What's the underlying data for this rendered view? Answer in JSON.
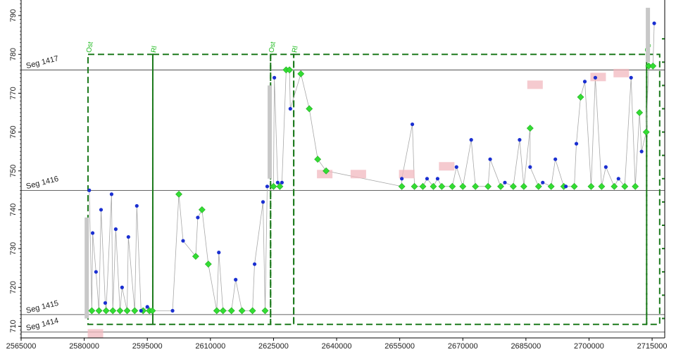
{
  "chart_data": {
    "type": "scatter",
    "title": "",
    "xlabel": "",
    "ylabel": "",
    "xlim": [
      2565000,
      2718000
    ],
    "ylim": [
      707,
      794
    ],
    "xticks": [
      {
        "value": 2565000,
        "label": "2565000"
      },
      {
        "value": 2580000,
        "label": "2580000"
      },
      {
        "value": 2595000,
        "label": "2595000"
      },
      {
        "value": 2610000,
        "label": "2610000"
      },
      {
        "value": 2625000,
        "label": "2625000"
      },
      {
        "value": 2640000,
        "label": "2640000"
      },
      {
        "value": 2655000,
        "label": "2655000"
      },
      {
        "value": 2670000,
        "label": "2670000"
      },
      {
        "value": 2685000,
        "label": "2685000"
      },
      {
        "value": 2700000,
        "label": "2700000"
      },
      {
        "value": 2715000,
        "label": "2715000"
      }
    ],
    "yticks": [
      {
        "value": 710,
        "label": "710"
      },
      {
        "value": 720,
        "label": "720"
      },
      {
        "value": 730,
        "label": "730"
      },
      {
        "value": 740,
        "label": "740"
      },
      {
        "value": 750,
        "label": "750"
      },
      {
        "value": 760,
        "label": "760"
      },
      {
        "value": 770,
        "label": "770"
      },
      {
        "value": 780,
        "label": "780"
      },
      {
        "value": 790,
        "label": "790"
      }
    ],
    "segments": [
      {
        "label": "Seg 1414",
        "y": 708.5
      },
      {
        "label": "Seg 1415",
        "y": 713
      },
      {
        "label": "Seg 1416",
        "y": 745
      },
      {
        "label": "Seg 1417",
        "y": 776
      }
    ],
    "boxes": [
      {
        "x": [
          2580900,
          2596300
        ],
        "y": [
          710.5,
          780
        ]
      },
      {
        "x": [
          2596300,
          2624300
        ],
        "y": [
          710.5,
          780
        ]
      },
      {
        "x": [
          2624300,
          2629800
        ],
        "y": [
          710.5,
          780
        ]
      },
      {
        "x": [
          2629800,
          2713700
        ],
        "y": [
          710.5,
          780
        ]
      },
      {
        "x": [
          2713700,
          2716800
        ],
        "y": [
          710.5,
          780
        ]
      }
    ],
    "box_labels": [
      {
        "text": "Ost",
        "x": 2580900
      },
      {
        "text": "Rl",
        "x": 2596300
      },
      {
        "text": "Ost",
        "x": 2624300
      },
      {
        "text": "Rl",
        "x": 2629800
      },
      {
        "text": "Os",
        "x": 2713700
      }
    ],
    "series": [
      {
        "marker": "diamond",
        "points": [
          [
            2581800,
            714
          ],
          [
            2583500,
            714
          ],
          [
            2585200,
            714
          ],
          [
            2586800,
            714
          ],
          [
            2588500,
            714
          ],
          [
            2590200,
            714
          ],
          [
            2592000,
            714
          ],
          [
            2594000,
            714
          ],
          [
            2595500,
            714
          ],
          [
            2596200,
            714
          ],
          [
            2602500,
            744
          ],
          [
            2606500,
            728
          ],
          [
            2608000,
            740
          ],
          [
            2609500,
            726
          ],
          [
            2611500,
            714
          ],
          [
            2613000,
            714
          ],
          [
            2615000,
            714
          ],
          [
            2617500,
            714
          ],
          [
            2620000,
            714
          ],
          [
            2623000,
            714
          ],
          [
            2625000,
            746
          ],
          [
            2626500,
            746
          ],
          [
            2628000,
            776
          ],
          [
            2628800,
            776
          ],
          [
            2631500,
            775
          ],
          [
            2633500,
            766
          ],
          [
            2635500,
            753
          ],
          [
            2637500,
            750
          ],
          [
            2655500,
            746
          ],
          [
            2658500,
            746
          ],
          [
            2660500,
            746
          ],
          [
            2663000,
            746
          ],
          [
            2665000,
            746
          ],
          [
            2667500,
            746
          ],
          [
            2670000,
            746
          ],
          [
            2673000,
            746
          ],
          [
            2676000,
            746
          ],
          [
            2679000,
            746
          ],
          [
            2682000,
            746
          ],
          [
            2684500,
            746
          ],
          [
            2686000,
            761
          ],
          [
            2688000,
            746
          ],
          [
            2691000,
            746
          ],
          [
            2694000,
            746
          ],
          [
            2696500,
            746
          ],
          [
            2698000,
            769
          ],
          [
            2700500,
            746
          ],
          [
            2703000,
            746
          ],
          [
            2706000,
            746
          ],
          [
            2708500,
            746
          ],
          [
            2711000,
            746
          ],
          [
            2712000,
            765
          ],
          [
            2713600,
            760
          ],
          [
            2714200,
            777
          ],
          [
            2715200,
            777
          ]
        ]
      },
      {
        "marker": "circle",
        "points": [
          [
            2581200,
            745
          ],
          [
            2582000,
            734
          ],
          [
            2582800,
            724
          ],
          [
            2584000,
            740
          ],
          [
            2585000,
            716
          ],
          [
            2586500,
            744
          ],
          [
            2587500,
            735
          ],
          [
            2589000,
            720
          ],
          [
            2590500,
            733
          ],
          [
            2592500,
            741
          ],
          [
            2593500,
            714
          ],
          [
            2595000,
            715
          ],
          [
            2601000,
            714
          ],
          [
            2603500,
            732
          ],
          [
            2607000,
            738
          ],
          [
            2612000,
            729
          ],
          [
            2616000,
            722
          ],
          [
            2620500,
            726
          ],
          [
            2622500,
            742
          ],
          [
            2623500,
            746
          ],
          [
            2625200,
            774
          ],
          [
            2626000,
            747
          ],
          [
            2627000,
            747
          ],
          [
            2629000,
            766
          ],
          [
            2655500,
            748
          ],
          [
            2658000,
            762
          ],
          [
            2661500,
            748
          ],
          [
            2664000,
            748
          ],
          [
            2668500,
            751
          ],
          [
            2672000,
            758
          ],
          [
            2676500,
            753
          ],
          [
            2680000,
            747
          ],
          [
            2683500,
            758
          ],
          [
            2686000,
            751
          ],
          [
            2689000,
            747
          ],
          [
            2692000,
            753
          ],
          [
            2694500,
            746
          ],
          [
            2697000,
            757
          ],
          [
            2699000,
            773
          ],
          [
            2701500,
            774
          ],
          [
            2704000,
            751
          ],
          [
            2707000,
            748
          ],
          [
            2710000,
            774
          ],
          [
            2712500,
            755
          ],
          [
            2715500,
            788
          ]
        ]
      },
      {
        "marker": "label",
        "points": [
          [
            2582500,
            708
          ],
          [
            2637000,
            749
          ],
          [
            2645000,
            749
          ],
          [
            2656500,
            749
          ],
          [
            2666000,
            751
          ],
          [
            2687000,
            772
          ],
          [
            2702000,
            774
          ],
          [
            2707500,
            775
          ]
        ]
      }
    ]
  }
}
